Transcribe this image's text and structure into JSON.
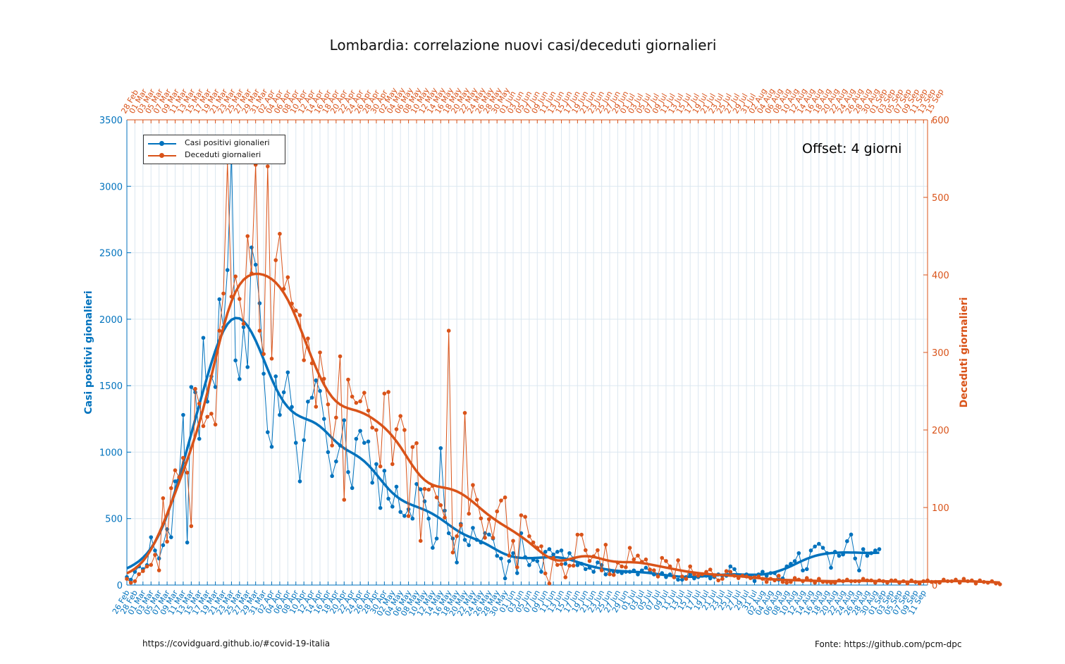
{
  "title": "Lombardia: correlazione nuovi casi/deceduti giornalieri",
  "annotation": "Offset: 4 giorni",
  "footer_left": "https://covidguard.github.io/#covid-19-italia",
  "footer_right": "Fonte: https://github.com/pcm-dpc",
  "colors": {
    "cases": "#0072bd",
    "deaths": "#d95319",
    "grid": "#dbe7f0"
  },
  "chart_data": {
    "type": "line",
    "title": "Lombardia: correlazione nuovi casi/deceduti giornalieri",
    "left_axis": {
      "label": "Casi positivi gionalieri",
      "ylim": [
        0,
        3500
      ],
      "ticks": [
        0,
        500,
        1000,
        1500,
        2000,
        2500,
        3000,
        3500
      ]
    },
    "right_axis": {
      "label": "Deceduti giornalieri",
      "ylim": [
        0,
        600
      ],
      "ticks": [
        0,
        100,
        200,
        300,
        400,
        500,
        600
      ]
    },
    "bottom_axis_ticks": [
      "26 Feb",
      "28 Feb",
      "01 Mar",
      "03 Mar",
      "05 Mar",
      "07 Mar",
      "09 Mar",
      "11 Mar",
      "13 Mar",
      "15 Mar",
      "17 Mar",
      "19 Mar",
      "21 Mar",
      "23 Mar",
      "25 Mar",
      "27 Mar",
      "29 Mar",
      "31 Mar",
      "02 Apr",
      "04 Apr",
      "06 Apr",
      "08 Apr",
      "10 Apr",
      "12 Apr",
      "14 Apr",
      "16 Apr",
      "18 Apr",
      "20 Apr",
      "22 Apr",
      "24 Apr",
      "26 Apr",
      "28 Apr",
      "30 Apr",
      "02 May",
      "04 May",
      "06 May",
      "08 May",
      "10 May",
      "12 May",
      "14 May",
      "16 May",
      "18 May",
      "20 May",
      "22 May",
      "24 May",
      "26 May",
      "28 May",
      "30 May",
      "01 Jun",
      "03 Jun",
      "05 Jun",
      "07 Jun",
      "09 Jun",
      "11 Jun",
      "13 Jun",
      "15 Jun",
      "17 Jun",
      "19 Jun",
      "21 Jun",
      "23 Jun",
      "25 Jun",
      "27 Jun",
      "29 Jun",
      "01 Jul",
      "03 Jul",
      "05 Jul",
      "07 Jul",
      "09 Jul",
      "11 Jul",
      "13 Jul",
      "15 Jul",
      "17 Jul",
      "19 Jul",
      "21 Jul",
      "23 Jul",
      "25 Jul",
      "27 Jul",
      "29 Jul",
      "31 Jul",
      "02 Aug",
      "04 Aug",
      "06 Aug",
      "08 Aug",
      "10 Aug",
      "12 Aug",
      "14 Aug",
      "16 Aug",
      "18 Aug",
      "20 Aug",
      "22 Aug",
      "24 Aug",
      "26 Aug",
      "28 Aug",
      "30 Aug",
      "01 Sep",
      "03 Sep",
      "05 Sep",
      "07 Sep",
      "09 Sep",
      "11 Sep"
    ],
    "top_axis_ticks": [
      "28 Feb",
      "01 Mar",
      "03 Mar",
      "05 Mar",
      "07 Mar",
      "09 Mar",
      "11 Mar",
      "13 Mar",
      "15 Mar",
      "17 Mar",
      "19 Mar",
      "21 Mar",
      "23 Mar",
      "25 Mar",
      "27 Mar",
      "29 Mar",
      "31 Mar",
      "02 Apr",
      "04 Apr",
      "06 Apr",
      "08 Apr",
      "10 Apr",
      "12 Apr",
      "14 Apr",
      "16 Apr",
      "18 Apr",
      "20 Apr",
      "22 Apr",
      "24 Apr",
      "26 Apr",
      "28 Apr",
      "30 Apr",
      "02 May",
      "04 May",
      "06 May",
      "08 May",
      "10 May",
      "12 May",
      "14 May",
      "16 May",
      "18 May",
      "20 May",
      "22 May",
      "24 May",
      "26 May",
      "28 May",
      "30 May",
      "01 Jun",
      "03 Jun",
      "05 Jun",
      "07 Jun",
      "09 Jun",
      "11 Jun",
      "13 Jun",
      "15 Jun",
      "17 Jun",
      "19 Jun",
      "21 Jun",
      "23 Jun",
      "25 Jun",
      "27 Jun",
      "29 Jun",
      "01 Jul",
      "03 Jul",
      "05 Jul",
      "07 Jul",
      "09 Jul",
      "11 Jul",
      "13 Jul",
      "15 Jul",
      "17 Jul",
      "19 Jul",
      "21 Jul",
      "23 Jul",
      "25 Jul",
      "27 Jul",
      "29 Jul",
      "31 Jul",
      "02 Aug",
      "04 Aug",
      "06 Aug",
      "08 Aug",
      "10 Aug",
      "12 Aug",
      "14 Aug",
      "16 Aug",
      "18 Aug",
      "20 Aug",
      "22 Aug",
      "24 Aug",
      "26 Aug",
      "28 Aug",
      "30 Aug",
      "01 Sep",
      "03 Sep",
      "05 Sep",
      "07 Sep",
      "09 Sep",
      "11 Sep",
      "13 Sep",
      "15 Sep"
    ],
    "legend": {
      "position": "top-left",
      "entries": [
        "Casi positivi gionalieri",
        "Deceduti giornalieri"
      ]
    },
    "grid": true,
    "series": [
      {
        "name": "Casi positivi gionalieri",
        "axis": "left",
        "x_start": "26 Feb",
        "values": [
          60,
          40,
          100,
          140,
          120,
          150,
          360,
          260,
          200,
          300,
          420,
          360,
          780,
          810,
          1280,
          320,
          1490,
          1450,
          1100,
          1860,
          1380,
          1570,
          1490,
          2150,
          1940,
          2370,
          3250,
          1690,
          1550,
          1940,
          1640,
          2540,
          2410,
          2120,
          1590,
          1150,
          1040,
          1570,
          1280,
          1450,
          1600,
          1340,
          1070,
          780,
          1090,
          1380,
          1410,
          1540,
          1460,
          1250,
          1000,
          820,
          930,
          1050,
          1240,
          850,
          730,
          1100,
          1160,
          1070,
          1080,
          770,
          910,
          580,
          860,
          650,
          590,
          740,
          550,
          520,
          570,
          500,
          760,
          720,
          630,
          500,
          280,
          350,
          1030,
          560,
          390,
          350,
          170,
          460,
          340,
          300,
          430,
          340,
          320,
          390,
          380,
          350,
          220,
          200,
          50,
          180,
          240,
          90,
          390,
          210,
          150,
          190,
          180,
          100,
          250,
          270,
          230,
          250,
          260,
          160,
          240,
          200,
          150,
          160,
          120,
          130,
          100,
          170,
          150,
          80,
          110,
          100,
          100,
          90,
          100,
          100,
          110,
          80,
          110,
          130,
          100,
          80,
          70,
          90,
          60,
          80,
          60,
          40,
          40,
          60,
          80,
          50,
          60,
          70,
          70,
          50,
          60,
          80,
          70,
          70,
          140,
          120,
          70,
          70,
          80,
          60,
          30,
          80,
          100,
          70,
          90,
          90,
          40,
          50,
          140,
          160,
          180,
          240,
          110,
          120,
          260,
          290,
          310,
          280,
          240,
          130,
          250,
          220,
          230,
          330,
          380,
          200,
          110,
          270,
          220,
          240,
          260,
          270
        ]
      },
      {
        "name": "Deceduti giornalieri",
        "axis": "right",
        "x_start": "28 Feb",
        "values": [
          8,
          3,
          5,
          14,
          18,
          24,
          26,
          39,
          19,
          112,
          56,
          125,
          148,
          139,
          164,
          145,
          76,
          253,
          234,
          205,
          217,
          221,
          207,
          328,
          376,
          545,
          372,
          398,
          369,
          337,
          450,
          402,
          542,
          328,
          298,
          540,
          292,
          419,
          453,
          382,
          397,
          363,
          354,
          348,
          290,
          318,
          286,
          230,
          300,
          266,
          233,
          180,
          216,
          295,
          110,
          265,
          243,
          235,
          237,
          248,
          225,
          203,
          200,
          153,
          247,
          249,
          156,
          201,
          218,
          200,
          89,
          178,
          183,
          57,
          124,
          123,
          128,
          113,
          103,
          87,
          328,
          42,
          63,
          77,
          222,
          92,
          129,
          110,
          86,
          61,
          85,
          61,
          95,
          109,
          113,
          38,
          57,
          23,
          90,
          88,
          63,
          55,
          48,
          50,
          15,
          2,
          35,
          26,
          27,
          10,
          25,
          25,
          65,
          65,
          45,
          31,
          37,
          45,
          19,
          52,
          14,
          13,
          29,
          24,
          23,
          48,
          33,
          38,
          30,
          33,
          20,
          19,
          11,
          35,
          31,
          24,
          10,
          32,
          11,
          8,
          24,
          14,
          12,
          14,
          17,
          20,
          12,
          6,
          8,
          18,
          17,
          12,
          9,
          12,
          11,
          9,
          10,
          11,
          8,
          4,
          8,
          6,
          12,
          4,
          3,
          4,
          9,
          7,
          5,
          9,
          6,
          3,
          8,
          4,
          4,
          3,
          3,
          6,
          5,
          7,
          5,
          5,
          5,
          8,
          6,
          6,
          3,
          6,
          5,
          3,
          6,
          6,
          3,
          5,
          2,
          6,
          4,
          2,
          5,
          6,
          4,
          4,
          3,
          7,
          5,
          5,
          7,
          3,
          8,
          5,
          6,
          2,
          6,
          4,
          3,
          5,
          2,
          1
        ]
      }
    ]
  }
}
